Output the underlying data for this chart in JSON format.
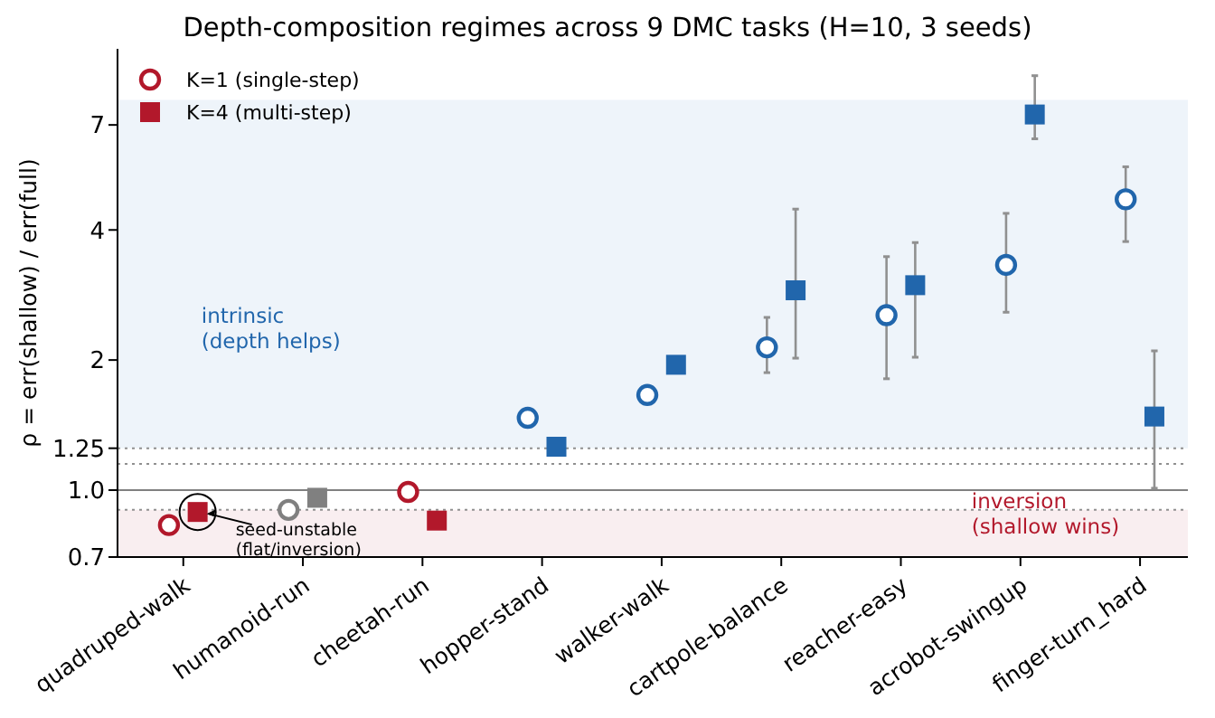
{
  "chart_data": {
    "type": "scatter",
    "title": "Depth-composition regimes across 9 DMC tasks (H=10, 3 seeds)",
    "ylabel": "ρ = err(shallow) / err(full)",
    "categories": [
      "quadruped-walk",
      "humanoid-run",
      "cheetah-run",
      "hopper-stand",
      "walker-walk",
      "cartpole-balance",
      "reacher-easy",
      "acrobot-swingup",
      "finger-turn_hard"
    ],
    "series": [
      {
        "name": "K=1 (single-step)",
        "marker": "circle",
        "color": "#b2182b",
        "colors": [
          "#b2182b",
          "#808080",
          "#b2182b",
          "#2166ac",
          "#2166ac",
          "#2166ac",
          "#2166ac",
          "#2166ac",
          "#2166ac"
        ],
        "values": [
          0.83,
          0.9,
          0.99,
          1.47,
          1.66,
          2.14,
          2.54,
          3.32,
          4.71
        ],
        "errors": [
          null,
          null,
          null,
          null,
          null,
          [
            1.87,
            2.51
          ],
          [
            1.81,
            3.47
          ],
          [
            2.58,
            4.37
          ],
          [
            3.76,
            5.6
          ]
        ]
      },
      {
        "name": "K=4 (multi-step)",
        "marker": "square",
        "color": "#b2182b",
        "colors": [
          "#b2182b",
          "#808080",
          "#b2182b",
          "#2166ac",
          "#2166ac",
          "#2166ac",
          "#2166ac",
          "#2166ac",
          "#2166ac"
        ],
        "values": [
          0.89,
          0.96,
          0.85,
          1.26,
          1.95,
          2.9,
          2.98,
          7.4,
          1.48
        ],
        "errors": [
          null,
          null,
          null,
          null,
          null,
          [
            2.02,
            4.47
          ],
          [
            2.03,
            3.74
          ],
          [
            6.5,
            9.1
          ],
          [
            1.01,
            2.1
          ]
        ]
      }
    ],
    "log": "y",
    "ylim": [
      0.7,
      10.5
    ],
    "yticks": [
      0.7,
      {
        "value": 1,
        "label": "1.0"
      },
      1.25,
      2,
      4,
      7
    ],
    "bands": [
      {
        "axis": "y",
        "from": 1.25,
        "to": 8,
        "label": "intrinsic\n(depth helps)",
        "color": "#eef4fa"
      },
      {
        "axis": "y",
        "from": 0.7,
        "to": 0.9,
        "label": "inversion\n(shallow wins)",
        "color": "#f9eef0"
      }
    ],
    "ref_lines": [
      {
        "axis": "y",
        "value": 1,
        "color": "#808080",
        "line_style": "solid"
      },
      {
        "axis": "y",
        "value": 1.25,
        "color": "#909090",
        "line_style": "dotted"
      },
      {
        "axis": "y",
        "value": 1.15,
        "color": "#909090",
        "line_style": "dotted"
      },
      {
        "axis": "y",
        "value": 0.9,
        "color": "#909090",
        "line_style": "dotted"
      }
    ],
    "annotations": [
      "seed-unstable\n(flat/inversion)"
    ],
    "legend": "top left",
    "grid": false
  }
}
